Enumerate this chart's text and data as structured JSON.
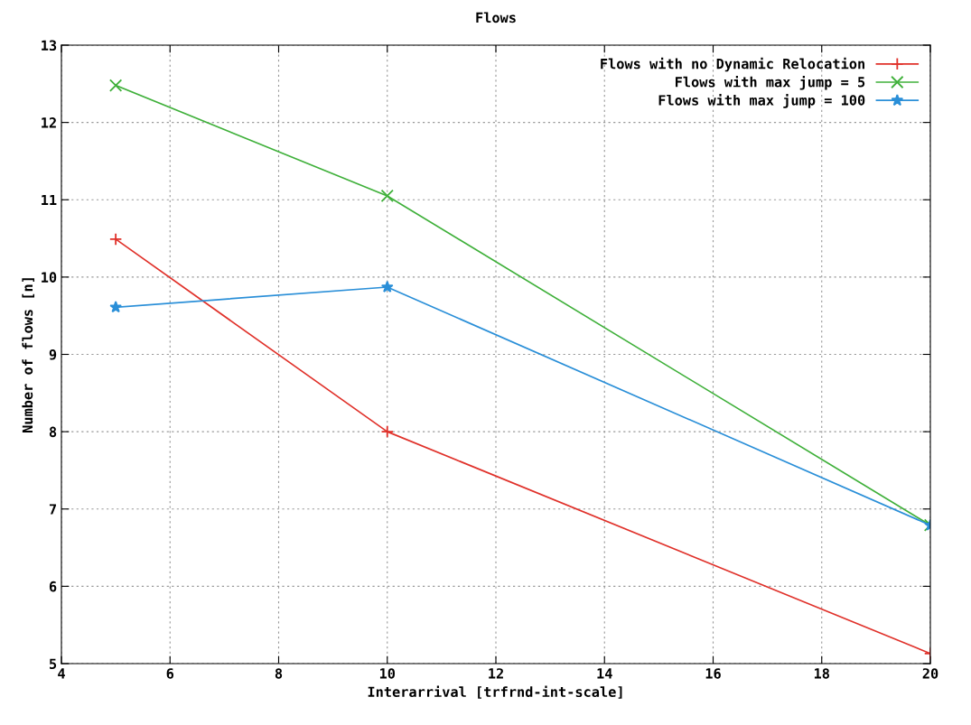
{
  "chart_data": {
    "type": "line",
    "title": "Flows",
    "xlabel": "Interarrival [trfrnd-int-scale]",
    "ylabel": "Number of flows [n]",
    "x": [
      5,
      10,
      20
    ],
    "series": [
      {
        "name": "Flows with no Dynamic Relocation",
        "color": "#e0312a",
        "marker": "plus",
        "values": [
          10.49,
          8.0,
          5.13
        ]
      },
      {
        "name": "Flows with max jump = 5",
        "color": "#3fb03a",
        "marker": "cross",
        "values": [
          12.48,
          11.05,
          6.79
        ]
      },
      {
        "name": "Flows with max jump = 100",
        "color": "#2a8fd8",
        "marker": "star",
        "values": [
          9.61,
          9.87,
          6.79
        ]
      }
    ],
    "xlim": [
      4,
      20
    ],
    "xticks": [
      4,
      6,
      8,
      10,
      12,
      14,
      16,
      18,
      20
    ],
    "ylim": [
      5,
      13
    ],
    "yticks": [
      5,
      6,
      7,
      8,
      9,
      10,
      11,
      12,
      13
    ],
    "grid": true,
    "legend": "top right",
    "line_style": "solid"
  }
}
